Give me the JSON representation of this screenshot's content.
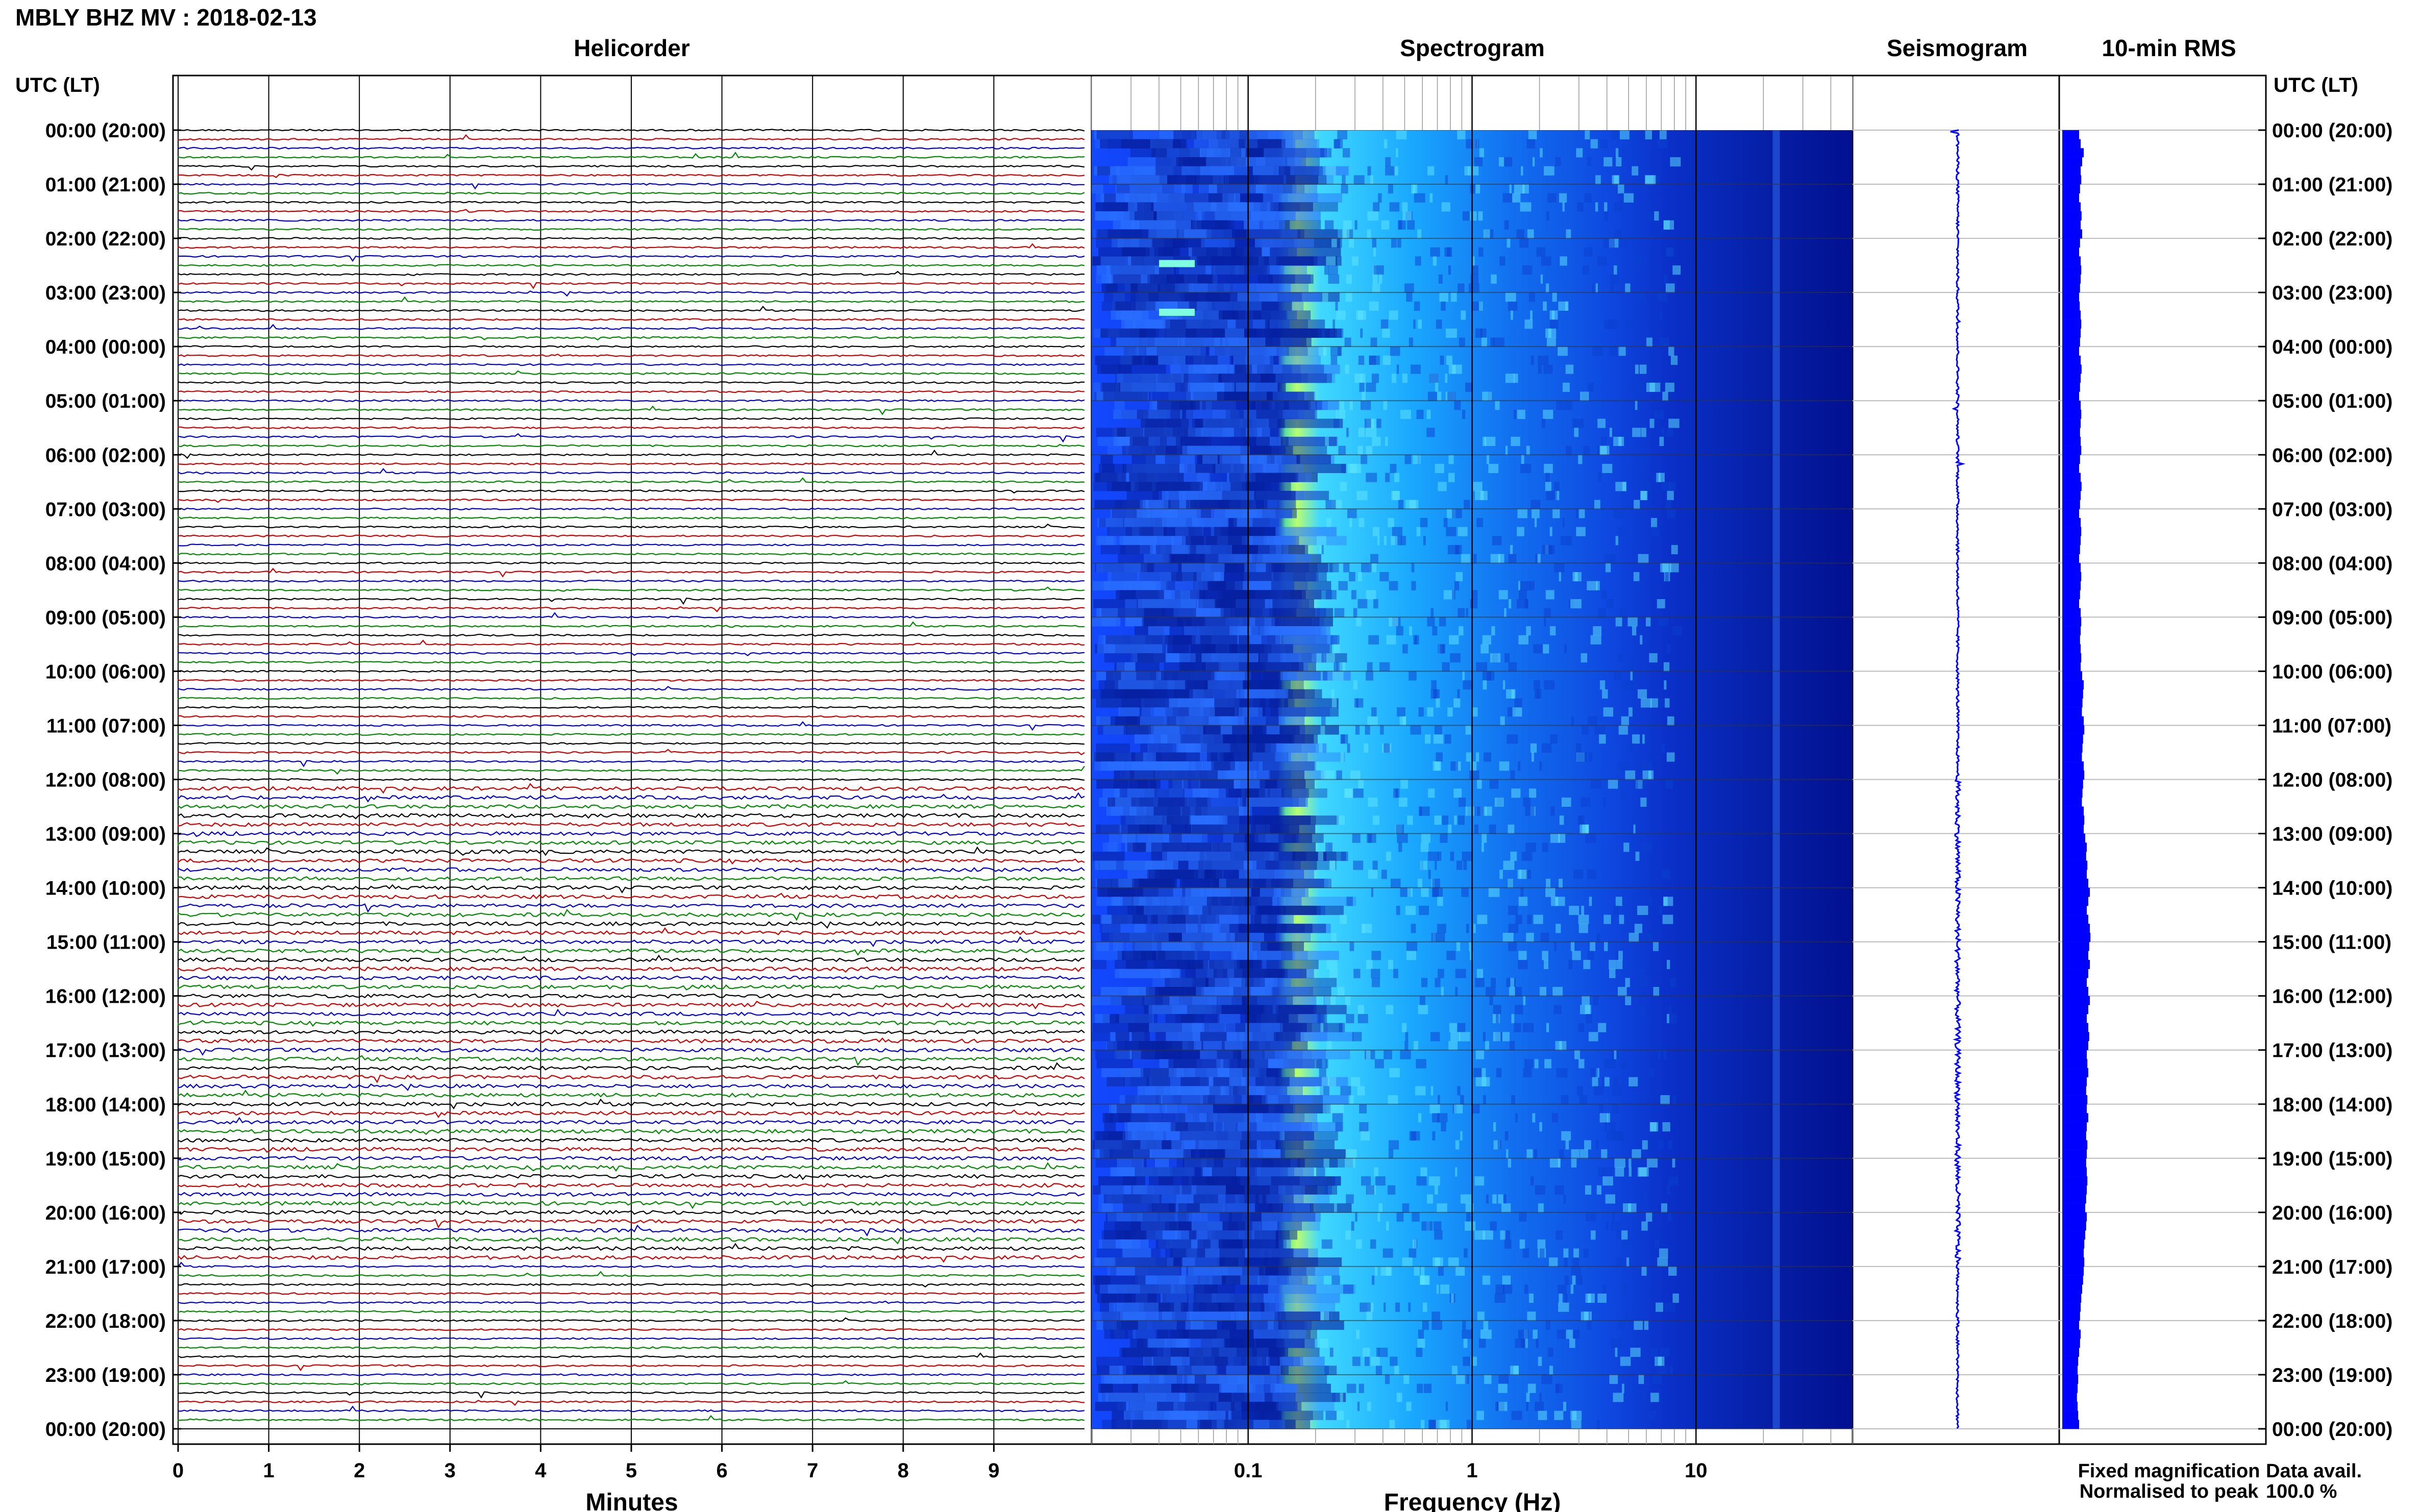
{
  "header": {
    "station_title": "MBLY BHZ MV : 2018-02-13"
  },
  "panels": {
    "helicorder": "Helicorder",
    "spectrogram": "Spectrogram",
    "seismogram": "Seismogram",
    "rms": "10-min RMS"
  },
  "axes": {
    "left_time_label": "UTC (LT)",
    "right_time_label": "UTC (LT)",
    "helicorder_xlabel": "Minutes",
    "spectrogram_xlabel": "Frequency (Hz)"
  },
  "legend": {
    "fixed_magnification": "Fixed magnification",
    "normalised_to_peak": "Normalised to peak",
    "fixed_color": "#0000ff",
    "normalised_color": "#ff0000"
  },
  "data_avail": {
    "label": "Data avail.",
    "value": "100.0 %"
  },
  "colors": {
    "trace_cycle": [
      "#000000",
      "#cc0000",
      "#0000cc",
      "#008800"
    ],
    "rms_bar": "#0000ff",
    "seismogram": "#0000ff",
    "spectrogram_low": "#00008b",
    "spectrogram_mid": "#1e6fff",
    "spectrogram_high": "#c8ff5a"
  },
  "chart_data": [
    {
      "type": "line",
      "name": "helicorder",
      "x_ticks": [
        "0",
        "1",
        "2",
        "3",
        "4",
        "5",
        "6",
        "7",
        "8",
        "9"
      ],
      "xlim": [
        0,
        10
      ],
      "xlabel": "Minutes",
      "traces_per_hour": 6,
      "trace_minutes": 10,
      "y_tick_labels": [
        "00:00 (20:00)",
        "01:00 (21:00)",
        "02:00 (22:00)",
        "03:00 (23:00)",
        "04:00 (00:00)",
        "05:00 (01:00)",
        "06:00 (02:00)",
        "07:00 (03:00)",
        "08:00 (04:00)",
        "09:00 (05:00)",
        "10:00 (06:00)",
        "11:00 (07:00)",
        "12:00 (08:00)",
        "13:00 (09:00)",
        "14:00 (10:00)",
        "15:00 (11:00)",
        "16:00 (12:00)",
        "17:00 (13:00)",
        "18:00 (14:00)",
        "19:00 (15:00)",
        "20:00 (16:00)",
        "21:00 (17:00)",
        "22:00 (18:00)",
        "23:00 (19:00)",
        "00:00 (20:00)"
      ]
    },
    {
      "type": "heatmap",
      "name": "spectrogram",
      "x_scale": "log",
      "xlim": [
        0.02,
        50
      ],
      "x_ticks": [
        "0.1",
        "1",
        "10"
      ],
      "xlabel": "Frequency (Hz)",
      "features": [
        {
          "band_hz": [
            0.16,
            0.25
          ],
          "level": "high",
          "description": "microseism band"
        },
        {
          "band_hz": [
            4,
            50
          ],
          "level": "low"
        }
      ]
    },
    {
      "type": "line",
      "name": "seismogram",
      "note": "24 h compressed vertical trace"
    },
    {
      "type": "bar",
      "name": "10-min RMS",
      "orientation": "horizontal",
      "bins": 144,
      "values": [
        0.55,
        0.6,
        0.7,
        0.65,
        0.6,
        0.62,
        0.58,
        0.55,
        0.6,
        0.63,
        0.6,
        0.65,
        0.58,
        0.55,
        0.6,
        0.62,
        0.6,
        0.58,
        0.55,
        0.57,
        0.6,
        0.62,
        0.6,
        0.58,
        0.55,
        0.6,
        0.63,
        0.6,
        0.58,
        0.55,
        0.6,
        0.62,
        0.6,
        0.58,
        0.6,
        0.62,
        0.58,
        0.55,
        0.6,
        0.63,
        0.6,
        0.58,
        0.55,
        0.6,
        0.62,
        0.6,
        0.58,
        0.55,
        0.6,
        0.62,
        0.6,
        0.58,
        0.55,
        0.6,
        0.62,
        0.6,
        0.58,
        0.6,
        0.62,
        0.6,
        0.65,
        0.7,
        0.68,
        0.66,
        0.64,
        0.7,
        0.72,
        0.68,
        0.66,
        0.64,
        0.7,
        0.72,
        0.68,
        0.66,
        0.64,
        0.7,
        0.72,
        0.7,
        0.75,
        0.8,
        0.78,
        0.82,
        0.8,
        0.85,
        0.9,
        0.85,
        0.8,
        0.85,
        0.9,
        0.92,
        0.88,
        0.85,
        0.9,
        0.85,
        0.8,
        0.85,
        0.9,
        0.85,
        0.8,
        0.85,
        0.88,
        0.85,
        0.8,
        0.82,
        0.85,
        0.8,
        0.78,
        0.82,
        0.8,
        0.85,
        0.8,
        0.78,
        0.82,
        0.8,
        0.78,
        0.8,
        0.82,
        0.8,
        0.78,
        0.75,
        0.8,
        0.78,
        0.75,
        0.72,
        0.7,
        0.72,
        0.7,
        0.68,
        0.65,
        0.62,
        0.6,
        0.58,
        0.55,
        0.6,
        0.58,
        0.55,
        0.52,
        0.5,
        0.52,
        0.5,
        0.48,
        0.5,
        0.52,
        0.55
      ]
    }
  ]
}
